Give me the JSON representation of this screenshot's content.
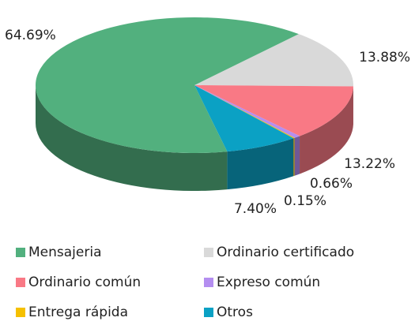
{
  "chart_data": {
    "type": "pie3d",
    "series": [
      {
        "name": "Mensajeria",
        "color": "#52b07e",
        "values": [
          64.69
        ],
        "value_labels": [
          "64.69%"
        ]
      },
      {
        "name": "Ordinario certificado",
        "color": "#d9d9d9",
        "values": [
          13.88
        ],
        "value_labels": [
          "13.88%"
        ]
      },
      {
        "name": "Ordinario común",
        "color": "#f97985",
        "values": [
          13.22
        ],
        "value_labels": [
          "13.22%"
        ]
      },
      {
        "name": "Expreso común",
        "color": "#b48ef0",
        "values": [
          0.66
        ],
        "value_labels": [
          "0.66%"
        ]
      },
      {
        "name": "Entrega rápida",
        "color": "#f5c000",
        "values": [
          0.15
        ],
        "value_labels": [
          "0.15%"
        ]
      },
      {
        "name": "Otros",
        "color": "#0ba1c4",
        "values": [
          7.4
        ],
        "value_labels": [
          "7.40%"
        ]
      }
    ],
    "legend": "bottom"
  }
}
